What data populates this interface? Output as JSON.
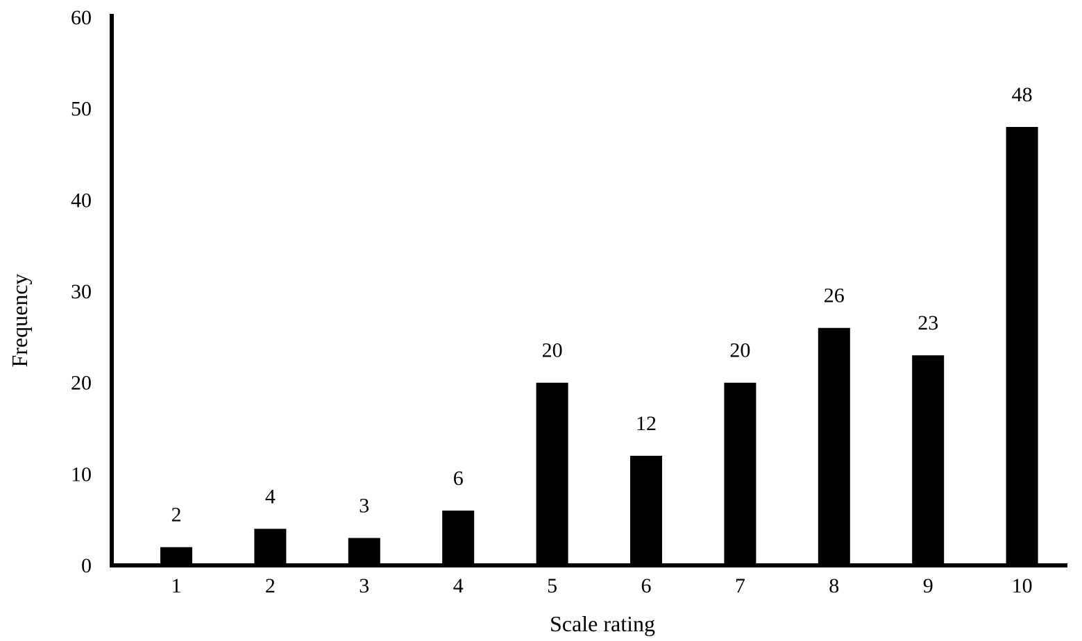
{
  "chart_data": {
    "type": "bar",
    "title": "",
    "xlabel": "Scale rating",
    "ylabel": "Frequency",
    "categories": [
      "1",
      "2",
      "3",
      "4",
      "5",
      "6",
      "7",
      "8",
      "9",
      "10"
    ],
    "values": [
      2,
      4,
      3,
      6,
      20,
      12,
      20,
      26,
      23,
      48
    ],
    "data_labels": [
      "2",
      "4",
      "3",
      "6",
      "20",
      "12",
      "20",
      "26",
      "23",
      "48"
    ],
    "ylim": [
      0,
      60
    ],
    "yticks": [
      0,
      10,
      20,
      30,
      40,
      50,
      60
    ],
    "ytick_labels": [
      "0",
      "10",
      "20",
      "30",
      "40",
      "50",
      "60"
    ],
    "grid": false,
    "legend": "none",
    "bar_color": "#000000",
    "axis_color": "#000000"
  }
}
